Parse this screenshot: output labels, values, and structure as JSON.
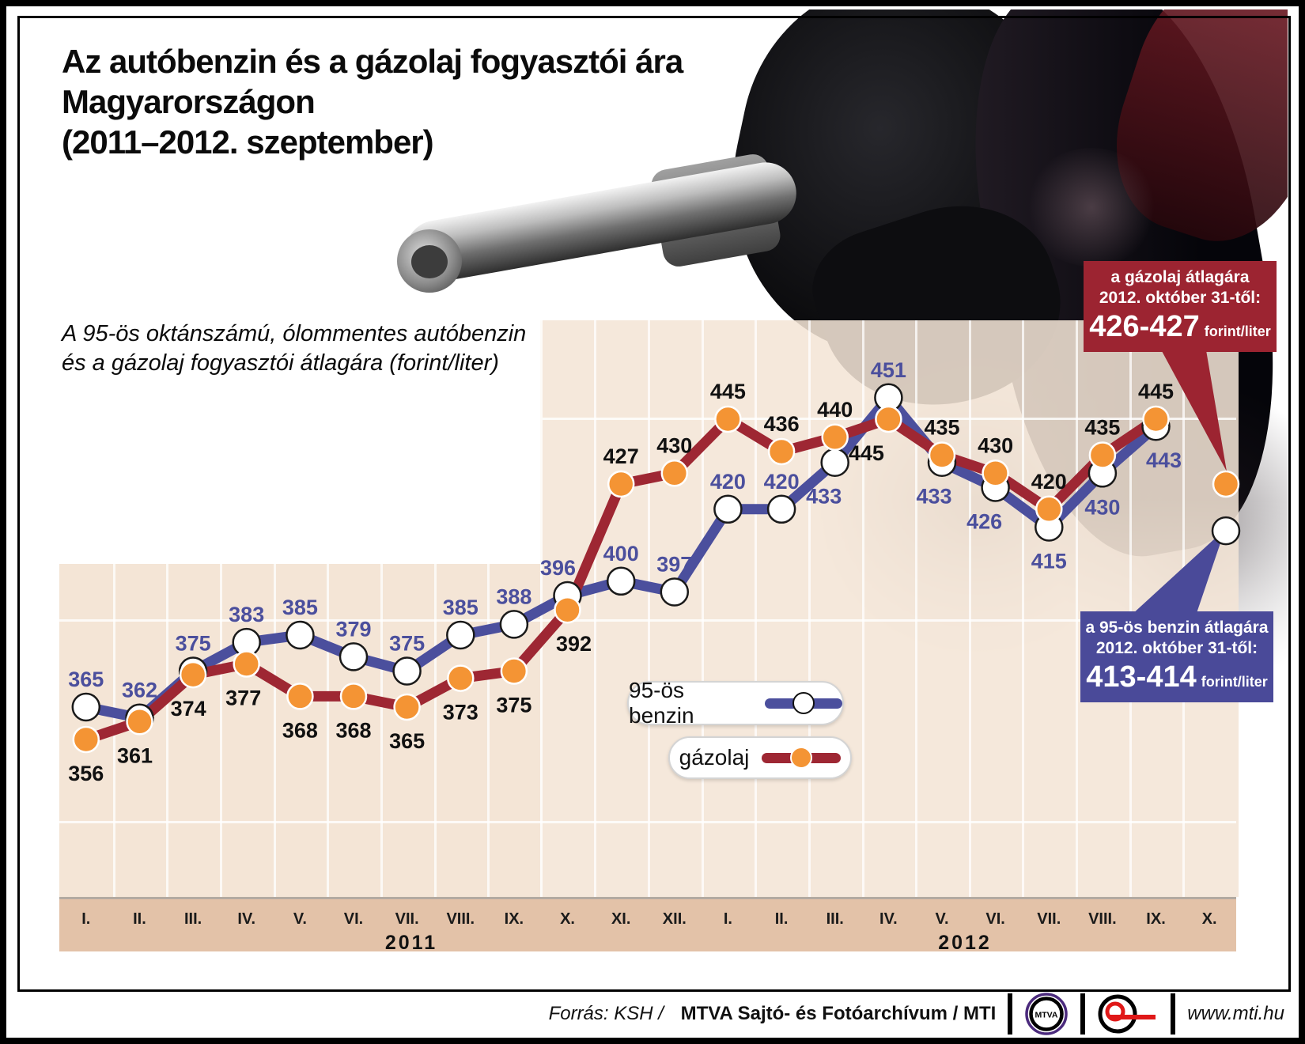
{
  "title": {
    "line1": "Az autóbenzin és a gázolaj fogyasztói ára",
    "line2": "Magyarországon",
    "line3": "(2011–2012. szeptember)"
  },
  "subtitle": {
    "line1": "A 95-ös oktánszámú, ólommentes autóbenzin",
    "line2": "és a gázolaj fogyasztói átlagára (forint/liter)"
  },
  "callouts": {
    "gazolaj": {
      "line1": "a gázolaj átlagára",
      "line2": "2012. október 31-től:",
      "value": "426-427",
      "unit": "forint/liter",
      "bg": "#9c2431"
    },
    "benzin": {
      "line1": "a 95-ös benzin átlagára",
      "line2": "2012. október 31-től:",
      "value": "413-414",
      "unit": "forint/liter",
      "bg": "#4a4a99"
    }
  },
  "footer": {
    "source_italic": "Forrás: KSH / ",
    "source_bold": "MTVA Sajtó- és Fotóarchívum / MTI",
    "mtva_logo_text": "MTVA",
    "website": "www.mti.hu"
  },
  "chart_data": {
    "type": "line",
    "title": "Az autóbenzin és a gázolaj fogyasztói ára Magyarországon (2011–2012. szeptember)",
    "ylabel": "forint/liter",
    "grid": true,
    "legend_position": "inside-bottom-left",
    "x_labels": [
      "I.",
      "II.",
      "III.",
      "IV.",
      "V.",
      "VI.",
      "VII.",
      "VIII.",
      "IX.",
      "X.",
      "XI.",
      "XII.",
      "I.",
      "II.",
      "III.",
      "IV.",
      "V.",
      "VI.",
      "VII.",
      "VIII.",
      "IX.",
      "X."
    ],
    "year_labels": [
      "2011",
      "2012"
    ],
    "series": [
      {
        "key": "benzin",
        "name": "95-ös benzin",
        "color": "#4b4f9d",
        "label_color": "#4b4f9d",
        "marker_fill": "#ffffff",
        "marker_stroke": "#1a1a1a",
        "values": [
          365,
          362,
          375,
          383,
          385,
          379,
          375,
          385,
          388,
          396,
          400,
          397,
          420,
          420,
          433,
          451,
          433,
          426,
          415,
          430,
          443
        ],
        "final_value": 414,
        "final_label": "413-414",
        "label_sides": [
          "a",
          "a",
          "a",
          "a",
          "a",
          "a",
          "a",
          "a",
          "a",
          "a",
          "a",
          "a",
          "a",
          "a",
          "b",
          "a",
          "b",
          "b",
          "b",
          "b",
          "b"
        ],
        "label_dx": [
          0,
          0,
          0,
          0,
          0,
          0,
          0,
          0,
          0,
          -12,
          0,
          0,
          0,
          0,
          -14,
          0,
          -10,
          -14,
          0,
          0,
          10
        ]
      },
      {
        "key": "gazolaj",
        "name": "gázolaj",
        "color": "#9e2733",
        "label_color": "#111111",
        "marker_fill": "#f49434",
        "marker_stroke": "#ffffff",
        "values": [
          356,
          361,
          374,
          377,
          368,
          368,
          365,
          373,
          375,
          392,
          427,
          430,
          445,
          436,
          440,
          445,
          435,
          430,
          420,
          435,
          445
        ],
        "final_value": 427,
        "final_label": "426-427",
        "label_sides": [
          "b",
          "b",
          "b",
          "b",
          "b",
          "b",
          "b",
          "b",
          "b",
          "b",
          "a",
          "a",
          "a",
          "a",
          "a",
          "b",
          "a",
          "a",
          "a",
          "a",
          "a"
        ],
        "label_dx": [
          0,
          -6,
          -6,
          -4,
          0,
          0,
          0,
          0,
          0,
          8,
          0,
          0,
          0,
          0,
          0,
          -28,
          0,
          0,
          0,
          0,
          0
        ]
      }
    ]
  }
}
